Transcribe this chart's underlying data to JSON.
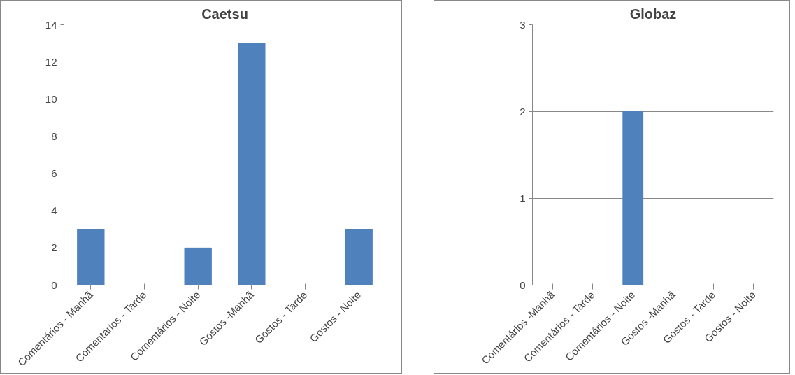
{
  "chart_data": [
    {
      "type": "bar",
      "title": "Caetsu",
      "categories": [
        "Comentários - Manhã",
        "Comentários - Tarde",
        "Comentários - Noite",
        "Gostos -Manhã",
        "Gostos - Tarde",
        "Gostos - Noite"
      ],
      "values": [
        3,
        0,
        2,
        13,
        0,
        3
      ],
      "color": "#4f81bd",
      "ylim": [
        0,
        14
      ],
      "yticks": [
        0,
        2,
        4,
        6,
        8,
        10,
        12,
        14
      ],
      "grid": "y"
    },
    {
      "type": "bar",
      "title": "Globaz",
      "categories": [
        "Comentários -Manhã",
        "Comentários - Tarde",
        "Comentários - Noite",
        "Gostos -Manhã",
        "Gostos - Tarde",
        "Gostos - Noite"
      ],
      "values": [
        0,
        0,
        2,
        0,
        0,
        0
      ],
      "color": "#4f81bd",
      "ylim": [
        0,
        3
      ],
      "yticks": [
        0,
        1,
        2,
        3
      ],
      "grid": "y"
    }
  ]
}
